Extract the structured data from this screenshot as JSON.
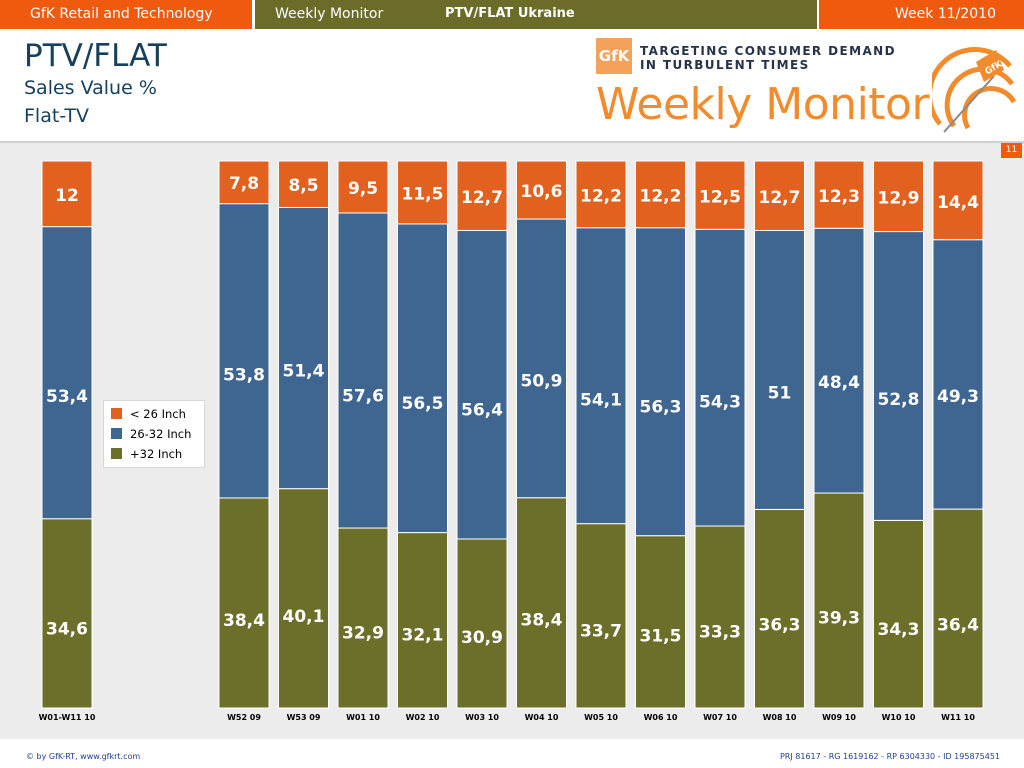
{
  "header": {
    "company": "GfK Retail and Technology",
    "report": "Weekly Monitor",
    "section": "PTV/FLAT Ukraine",
    "week": "Week 11/2010"
  },
  "title": {
    "main": "PTV/FLAT",
    "sub1": "Sales Value %",
    "sub2": "Flat-TV"
  },
  "logo": {
    "badge": "GfK",
    "tagline1": "TARGETING CONSUMER DEMAND",
    "tagline2": "IN TURBULENT TIMES",
    "wordmark": "Weekly Monitor",
    "target_flag": "GfK"
  },
  "page_number": "11",
  "footer": {
    "left": "© by GfK-RT, www.gfkrt.com",
    "right": "PRJ 81617 - RG 1619162 - RP 6304330 - ID 195875451"
  },
  "colors": {
    "orange": "#e2611f",
    "blue": "#3e6690",
    "olive": "#6b6f2a",
    "header_orange": "#f05a0e",
    "header_olive": "#6b6c2a"
  },
  "chart_data": {
    "type": "bar",
    "stacked": true,
    "normalized_percent": true,
    "categories": [
      "W01-W11 10",
      "W52 09",
      "W53 09",
      "W01 10",
      "W02 10",
      "W03 10",
      "W04 10",
      "W05 10",
      "W06 10",
      "W07 10",
      "W08 10",
      "W09 10",
      "W10 10",
      "W11 10"
    ],
    "series": [
      {
        "name": "+32 Inch",
        "color": "#6b6f2a",
        "values": [
          34.6,
          38.4,
          40.1,
          32.9,
          32.1,
          30.9,
          38.4,
          33.7,
          31.5,
          33.3,
          36.3,
          39.3,
          34.3,
          36.4
        ]
      },
      {
        "name": "26-32 Inch",
        "color": "#3e6690",
        "values": [
          53.4,
          53.8,
          51.4,
          57.6,
          56.5,
          56.4,
          50.9,
          54.1,
          56.3,
          54.3,
          51,
          48.4,
          52.8,
          49.3
        ]
      },
      {
        "name": "< 26 Inch",
        "color": "#e2611f",
        "values": [
          12,
          7.8,
          8.5,
          9.5,
          11.5,
          12.7,
          10.6,
          12.2,
          12.2,
          12.5,
          12.7,
          12.3,
          12.9,
          14.4
        ]
      }
    ],
    "labels": {
      "+32 Inch": [
        "34,6",
        "38,4",
        "40,1",
        "32,9",
        "32,1",
        "30,9",
        "38,4",
        "33,7",
        "31,5",
        "33,3",
        "36,3",
        "39,3",
        "34,3",
        "36,4"
      ],
      "26-32 Inch": [
        "53,4",
        "53,8",
        "51,4",
        "57,6",
        "56,5",
        "56,4",
        "50,9",
        "54,1",
        "56,3",
        "54,3",
        "51",
        "48,4",
        "52,8",
        "49,3"
      ],
      "< 26 Inch": [
        "12",
        "7,8",
        "8,5",
        "9,5",
        "11,5",
        "12,7",
        "10,6",
        "12,2",
        "12,2",
        "12,5",
        "12,7",
        "12,3",
        "12,9",
        "14,4"
      ]
    },
    "legend": [
      "< 26 Inch",
      "26-32 Inch",
      "+32 Inch"
    ],
    "ylim": [
      0,
      100
    ],
    "grid": false
  }
}
